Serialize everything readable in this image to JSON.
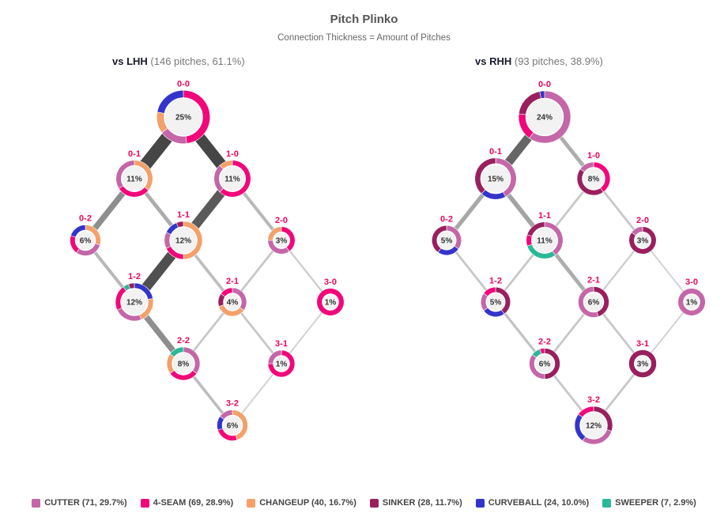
{
  "title": "Pitch Plinko",
  "subtitle": "Connection Thickness = Amount of Pitches",
  "colors": {
    "CUTTER": "#c466a8",
    "4-SEAM": "#f2077a",
    "CHANGEUP": "#f4a06a",
    "SINKER": "#9a1f5e",
    "CURVEBALL": "#3434cc",
    "SWEEPER": "#2ab898",
    "count_label": "#e8065e"
  },
  "legend": [
    {
      "pitch": "CUTTER",
      "label": "CUTTER (71, 29.7%)",
      "color": "#c466a8"
    },
    {
      "pitch": "4-SEAM",
      "label": "4-SEAM (69, 28.9%)",
      "color": "#f2077a"
    },
    {
      "pitch": "CHANGEUP",
      "label": "CHANGEUP (40, 16.7%)",
      "color": "#f4a06a"
    },
    {
      "pitch": "SINKER",
      "label": "SINKER (28, 11.7%)",
      "color": "#9a1f5e"
    },
    {
      "pitch": "CURVEBALL",
      "label": "CURVEBALL (24, 10.0%)",
      "color": "#3434cc"
    },
    {
      "pitch": "SWEEPER",
      "label": "SWEEPER (7, 2.9%)",
      "color": "#2ab898"
    }
  ],
  "chart_data": [
    {
      "type": "network",
      "panel": "lhh",
      "title_bold": "vs LHH",
      "title_rest": " (146 pitches, 61.1%)",
      "nodes": [
        {
          "count": "0-0",
          "share": 25,
          "label": "25%",
          "mix": {
            "4-SEAM": 0.48,
            "CUTTER": 0.17,
            "CHANGEUP": 0.13,
            "CURVEBALL": 0.22
          }
        },
        {
          "count": "0-1",
          "share": 11,
          "label": "11%",
          "mix": {
            "CHANGEUP": 0.36,
            "4-SEAM": 0.3,
            "CUTTER": 0.34
          }
        },
        {
          "count": "1-0",
          "share": 11,
          "label": "11%",
          "mix": {
            "4-SEAM": 0.62,
            "CUTTER": 0.26,
            "CHANGEUP": 0.12
          }
        },
        {
          "count": "0-2",
          "share": 6,
          "label": "6%",
          "mix": {
            "CHANGEUP": 0.3,
            "CUTTER": 0.3,
            "4-SEAM": 0.2,
            "CURVEBALL": 0.2
          }
        },
        {
          "count": "1-1",
          "share": 12,
          "label": "12%",
          "mix": {
            "CHANGEUP": 0.5,
            "4-SEAM": 0.18,
            "CUTTER": 0.14,
            "CURVEBALL": 0.12,
            "SINKER": 0.06
          }
        },
        {
          "count": "2-0",
          "share": 3,
          "label": "3%",
          "mix": {
            "4-SEAM": 0.4,
            "CUTTER": 0.35,
            "CHANGEUP": 0.25
          }
        },
        {
          "count": "1-2",
          "share": 12,
          "label": "12%",
          "mix": {
            "CURVEBALL": 0.22,
            "CHANGEUP": 0.22,
            "CUTTER": 0.24,
            "4-SEAM": 0.22,
            "SWEEPER": 0.05,
            "SINKER": 0.05
          }
        },
        {
          "count": "2-1",
          "share": 4,
          "label": "4%",
          "mix": {
            "CUTTER": 0.35,
            "CHANGEUP": 0.35,
            "SINKER": 0.15,
            "4-SEAM": 0.15
          }
        },
        {
          "count": "3-0",
          "share": 1,
          "label": "1%",
          "mix": {
            "4-SEAM": 1.0
          }
        },
        {
          "count": "2-2",
          "share": 8,
          "label": "8%",
          "mix": {
            "CUTTER": 0.35,
            "4-SEAM": 0.3,
            "CHANGEUP": 0.2,
            "SWEEPER": 0.15
          }
        },
        {
          "count": "3-1",
          "share": 1,
          "label": "1%",
          "mix": {
            "4-SEAM": 0.75,
            "CUTTER": 0.25
          }
        },
        {
          "count": "3-2",
          "share": 6,
          "label": "6%",
          "mix": {
            "CHANGEUP": 0.45,
            "4-SEAM": 0.25,
            "CURVEBALL": 0.15,
            "CUTTER": 0.15
          }
        }
      ],
      "links": [
        {
          "from": "0-0",
          "to": "0-1",
          "pitches": 34
        },
        {
          "from": "0-0",
          "to": "1-0",
          "pitches": 30
        },
        {
          "from": "0-1",
          "to": "0-2",
          "pitches": 14
        },
        {
          "from": "0-1",
          "to": "1-1",
          "pitches": 8
        },
        {
          "from": "1-0",
          "to": "1-1",
          "pitches": 24
        },
        {
          "from": "1-0",
          "to": "2-0",
          "pitches": 6
        },
        {
          "from": "0-2",
          "to": "1-2",
          "pitches": 6
        },
        {
          "from": "1-1",
          "to": "1-2",
          "pitches": 26
        },
        {
          "from": "1-1",
          "to": "2-1",
          "pitches": 5
        },
        {
          "from": "2-0",
          "to": "2-1",
          "pitches": 3
        },
        {
          "from": "2-0",
          "to": "3-0",
          "pitches": 2
        },
        {
          "from": "1-2",
          "to": "2-2",
          "pitches": 14
        },
        {
          "from": "2-1",
          "to": "2-2",
          "pitches": 3
        },
        {
          "from": "2-1",
          "to": "3-1",
          "pitches": 3
        },
        {
          "from": "3-0",
          "to": "3-1",
          "pitches": 1
        },
        {
          "from": "2-2",
          "to": "3-2",
          "pitches": 5
        },
        {
          "from": "3-1",
          "to": "3-2",
          "pitches": 1
        }
      ]
    },
    {
      "type": "network",
      "panel": "rhh",
      "title_bold": "vs RHH",
      "title_rest": " (93 pitches, 38.9%)",
      "nodes": [
        {
          "count": "0-0",
          "share": 24,
          "label": "24%",
          "mix": {
            "CUTTER": 0.6,
            "4-SEAM": 0.17,
            "SINKER": 0.2,
            "CURVEBALL": 0.03
          }
        },
        {
          "count": "0-1",
          "share": 15,
          "label": "15%",
          "mix": {
            "CUTTER": 0.42,
            "CURVEBALL": 0.2,
            "SINKER": 0.38
          }
        },
        {
          "count": "1-0",
          "share": 8,
          "label": "8%",
          "mix": {
            "4-SEAM": 0.4,
            "SINKER": 0.45,
            "CUTTER": 0.15
          }
        },
        {
          "count": "0-2",
          "share": 5,
          "label": "5%",
          "mix": {
            "CUTTER": 0.35,
            "CURVEBALL": 0.25,
            "SINKER": 0.4
          }
        },
        {
          "count": "1-1",
          "share": 11,
          "label": "11%",
          "mix": {
            "CUTTER": 0.4,
            "SWEEPER": 0.3,
            "4-SEAM": 0.1,
            "SINKER": 0.2
          }
        },
        {
          "count": "2-0",
          "share": 3,
          "label": "3%",
          "mix": {
            "SINKER": 0.85,
            "CUTTER": 0.15
          }
        },
        {
          "count": "1-2",
          "share": 5,
          "label": "5%",
          "mix": {
            "SINKER": 0.4,
            "CURVEBALL": 0.25,
            "CUTTER": 0.2,
            "4-SEAM": 0.15
          }
        },
        {
          "count": "2-1",
          "share": 6,
          "label": "6%",
          "mix": {
            "SINKER": 0.45,
            "CUTTER": 0.55
          }
        },
        {
          "count": "3-0",
          "share": 1,
          "label": "1%",
          "mix": {
            "CUTTER": 1.0
          }
        },
        {
          "count": "2-2",
          "share": 6,
          "label": "6%",
          "mix": {
            "SINKER": 0.5,
            "CUTTER": 0.35,
            "SWEEPER": 0.1,
            "4-SEAM": 0.05
          }
        },
        {
          "count": "3-1",
          "share": 3,
          "label": "3%",
          "mix": {
            "SINKER": 1.0
          }
        },
        {
          "count": "3-2",
          "share": 12,
          "label": "12%",
          "mix": {
            "SINKER": 0.3,
            "CUTTER": 0.3,
            "CURVEBALL": 0.25,
            "4-SEAM": 0.15
          }
        }
      ],
      "links": [
        {
          "from": "0-0",
          "to": "0-1",
          "pitches": 22
        },
        {
          "from": "0-0",
          "to": "1-0",
          "pitches": 8
        },
        {
          "from": "0-1",
          "to": "0-2",
          "pitches": 9
        },
        {
          "from": "0-1",
          "to": "1-1",
          "pitches": 10
        },
        {
          "from": "1-0",
          "to": "1-1",
          "pitches": 3
        },
        {
          "from": "1-0",
          "to": "2-0",
          "pitches": 3
        },
        {
          "from": "0-2",
          "to": "1-2",
          "pitches": 3
        },
        {
          "from": "1-1",
          "to": "1-2",
          "pitches": 3
        },
        {
          "from": "1-1",
          "to": "2-1",
          "pitches": 8
        },
        {
          "from": "2-0",
          "to": "2-1",
          "pitches": 2
        },
        {
          "from": "2-0",
          "to": "3-0",
          "pitches": 1
        },
        {
          "from": "1-2",
          "to": "2-2",
          "pitches": 4
        },
        {
          "from": "2-1",
          "to": "2-2",
          "pitches": 3
        },
        {
          "from": "2-1",
          "to": "3-1",
          "pitches": 3
        },
        {
          "from": "3-0",
          "to": "3-1",
          "pitches": 1
        },
        {
          "from": "2-2",
          "to": "3-2",
          "pitches": 3
        },
        {
          "from": "3-1",
          "to": "3-2",
          "pitches": 3
        }
      ]
    }
  ]
}
